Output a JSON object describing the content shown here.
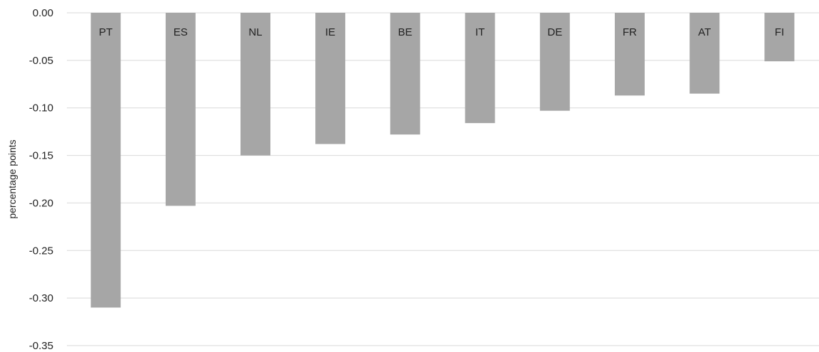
{
  "chart_data": {
    "type": "bar",
    "title": "",
    "xlabel": "",
    "ylabel": "percentage points",
    "categories": [
      "PT",
      "ES",
      "NL",
      "IE",
      "BE",
      "IT",
      "DE",
      "FR",
      "AT",
      "FI"
    ],
    "values": [
      -0.31,
      -0.203,
      -0.15,
      -0.138,
      -0.128,
      -0.116,
      -0.103,
      -0.087,
      -0.085,
      -0.051
    ],
    "ylim": [
      -0.35,
      0.0
    ],
    "yticks": [
      "0.00",
      "-0.05",
      "-0.10",
      "-0.15",
      "-0.20",
      "-0.25",
      "-0.30",
      "-0.35"
    ],
    "ytick_values": [
      0.0,
      -0.05,
      -0.1,
      -0.15,
      -0.2,
      -0.25,
      -0.3,
      -0.35
    ],
    "grid": true,
    "bar_color": "#a6a6a6",
    "grid_color": "#d9d9d9"
  }
}
